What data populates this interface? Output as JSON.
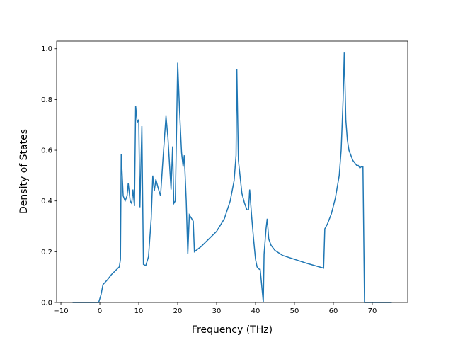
{
  "chart_data": {
    "type": "line",
    "x_label": "Frequency (THz)",
    "y_label": "Density of States",
    "xlim": [
      -11.1,
      79.1
    ],
    "ylim": [
      0,
      1.03
    ],
    "xticks": [
      {
        "value": -10,
        "label": "−10"
      },
      0,
      10,
      20,
      30,
      40,
      50,
      60,
      70
    ],
    "yticks": [
      {
        "value": 0,
        "label": "0.0"
      },
      {
        "value": 0.2,
        "label": "0.2"
      },
      {
        "value": 0.4,
        "label": "0.4"
      },
      {
        "value": 0.6,
        "label": "0.6"
      },
      {
        "value": 0.8,
        "label": "0.8"
      },
      {
        "value": 1.0,
        "label": "1.0"
      }
    ],
    "series": [
      {
        "color": "#1f77b4",
        "x": [
          -7,
          -0.3,
          0.3,
          0.8,
          2,
          3,
          5,
          5.3,
          5.5,
          6,
          6.5,
          7,
          7.3,
          7.8,
          8.2,
          8.5,
          8.9,
          9.2,
          9.6,
          10,
          10.3,
          10.8,
          11.2,
          11.8,
          12.5,
          13.2,
          13.6,
          14,
          14.4,
          15,
          15.6,
          16.2,
          17,
          17.5,
          18,
          18.3,
          18.7,
          19,
          19.4,
          20,
          20.5,
          21,
          21.4,
          21.7,
          22.2,
          22.6,
          23,
          24,
          24.3,
          26,
          28,
          30,
          32,
          33.5,
          34.5,
          35,
          35.2,
          35.6,
          36.5,
          37.2,
          37.8,
          38.2,
          38.5,
          39,
          39.5,
          40,
          40.4,
          41,
          41.2,
          42,
          42.2,
          42.7,
          43,
          43.4,
          44,
          45,
          47,
          50,
          53,
          57.5,
          57.8,
          58.5,
          59.5,
          60.5,
          61.5,
          62,
          62.5,
          62.8,
          63.2,
          63.6,
          64,
          65,
          66,
          66.4,
          66.8,
          67.2,
          67.6,
          68,
          75
        ],
        "values": [
          0,
          0,
          0.03,
          0.07,
          0.09,
          0.11,
          0.14,
          0.17,
          0.585,
          0.42,
          0.4,
          0.42,
          0.47,
          0.4,
          0.39,
          0.445,
          0.38,
          0.775,
          0.71,
          0.72,
          0.375,
          0.695,
          0.15,
          0.145,
          0.18,
          0.33,
          0.5,
          0.44,
          0.485,
          0.45,
          0.42,
          0.56,
          0.735,
          0.65,
          0.52,
          0.445,
          0.615,
          0.39,
          0.4,
          0.945,
          0.75,
          0.59,
          0.535,
          0.58,
          0.4,
          0.19,
          0.345,
          0.32,
          0.2,
          0.22,
          0.25,
          0.28,
          0.33,
          0.4,
          0.48,
          0.58,
          0.92,
          0.56,
          0.43,
          0.39,
          0.365,
          0.365,
          0.445,
          0.34,
          0.25,
          0.17,
          0.14,
          0.13,
          0.13,
          0,
          0.19,
          0.29,
          0.33,
          0.25,
          0.225,
          0.205,
          0.185,
          0.17,
          0.155,
          0.135,
          0.29,
          0.31,
          0.35,
          0.41,
          0.5,
          0.6,
          0.8,
          0.985,
          0.72,
          0.64,
          0.6,
          0.56,
          0.54,
          0.54,
          0.53,
          0.535,
          0.535,
          0,
          0
        ]
      }
    ]
  }
}
